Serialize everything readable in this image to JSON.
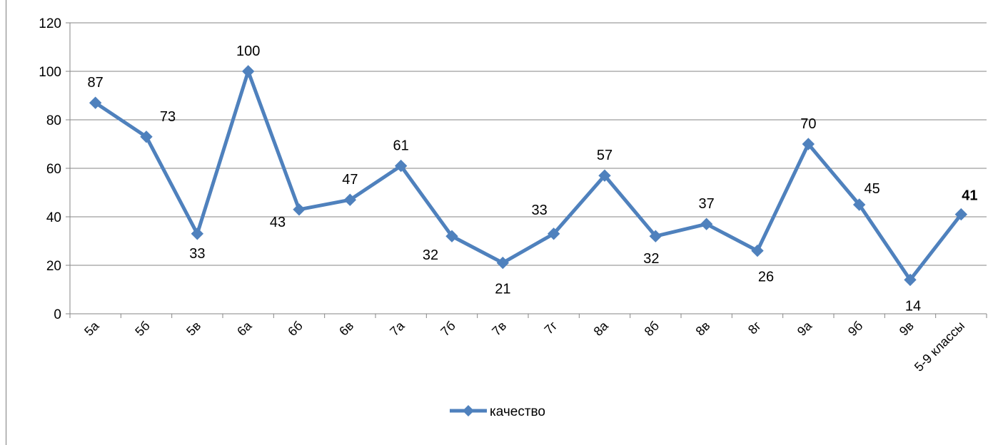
{
  "chart_data": {
    "type": "line",
    "title": "",
    "xlabel": "",
    "ylabel": "",
    "ylim": [
      0,
      120
    ],
    "yticks": [
      0,
      20,
      40,
      60,
      80,
      100,
      120
    ],
    "grid": true,
    "legend_position": "bottom",
    "categories": [
      "5а",
      "5б",
      "5в",
      "6а",
      "6б",
      "6в",
      "7а",
      "7б",
      "7в",
      "7г",
      "8а",
      "8б",
      "8в",
      "8г",
      "9а",
      "9б",
      "9в",
      "5-9 классы"
    ],
    "series": [
      {
        "name": "качество",
        "color": "#4f81bd",
        "marker": "diamond",
        "values": [
          87,
          73,
          33,
          100,
          43,
          47,
          61,
          32,
          21,
          33,
          57,
          32,
          37,
          26,
          70,
          45,
          14,
          41
        ],
        "data_labels": [
          "87",
          "73",
          "33",
          "100",
          "43",
          "47",
          "61",
          "32",
          "21",
          "33",
          "57",
          "32",
          "37",
          "26",
          "70",
          "45",
          "14",
          "41"
        ]
      }
    ]
  }
}
